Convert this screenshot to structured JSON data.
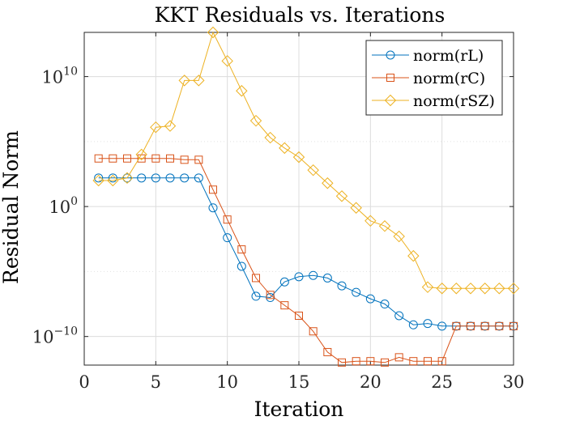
{
  "chart_data": {
    "type": "line",
    "title": "KKT Residuals vs. Iterations",
    "xlabel": "Iteration",
    "ylabel": "Residual Norm",
    "xlim": [
      0,
      30
    ],
    "ylog10lim": [
      -12.2,
      13.4
    ],
    "yscale": "log",
    "xticks": [
      0,
      5,
      10,
      15,
      20,
      25,
      30
    ],
    "yticks": [
      {
        "exp": 10,
        "base": "10",
        "sup": "10"
      },
      {
        "exp": 0,
        "base": "10",
        "sup": "0"
      },
      {
        "exp": -10,
        "base": "10",
        "sup": "−10"
      }
    ],
    "grid": true,
    "legend_position": "top-right",
    "x": [
      1,
      2,
      3,
      4,
      5,
      6,
      7,
      8,
      9,
      10,
      11,
      12,
      13,
      14,
      15,
      16,
      17,
      18,
      19,
      20,
      21,
      22,
      23,
      24,
      25,
      26,
      27,
      28,
      29,
      30
    ],
    "series": [
      {
        "name": "norm(rL)",
        "color": "#0072bd",
        "marker": "circle",
        "log10_values": [
          2.2,
          2.2,
          2.2,
          2.2,
          2.2,
          2.2,
          2.2,
          2.2,
          -0.1,
          -2.4,
          -4.6,
          -6.9,
          -7.0,
          -5.8,
          -5.4,
          -5.3,
          -5.5,
          -6.1,
          -6.6,
          -7.1,
          -7.5,
          -8.4,
          -9.1,
          -9.0,
          -9.2,
          -9.2,
          -9.2,
          -9.2,
          -9.2,
          -9.2
        ]
      },
      {
        "name": "norm(rC)",
        "color": "#d95319",
        "marker": "square",
        "log10_values": [
          3.7,
          3.7,
          3.7,
          3.7,
          3.7,
          3.7,
          3.6,
          3.6,
          1.3,
          -1.0,
          -3.3,
          -5.5,
          -6.8,
          -7.6,
          -8.4,
          -9.6,
          -11.2,
          -12.0,
          -11.9,
          -11.9,
          -12.0,
          -11.6,
          -11.9,
          -11.9,
          -11.9,
          -9.2,
          -9.2,
          -9.2,
          -9.2,
          -9.2
        ]
      },
      {
        "name": "norm(rSZ)",
        "color": "#edb120",
        "marker": "diamond",
        "log10_values": [
          2.0,
          2.0,
          2.2,
          4.0,
          6.1,
          6.2,
          9.7,
          9.7,
          13.4,
          11.2,
          8.9,
          6.6,
          5.3,
          4.5,
          3.8,
          2.8,
          1.8,
          0.8,
          -0.1,
          -1.1,
          -1.5,
          -2.3,
          -3.8,
          -6.2,
          -6.3,
          -6.3,
          -6.3,
          -6.3,
          -6.3,
          -6.3
        ]
      }
    ]
  }
}
